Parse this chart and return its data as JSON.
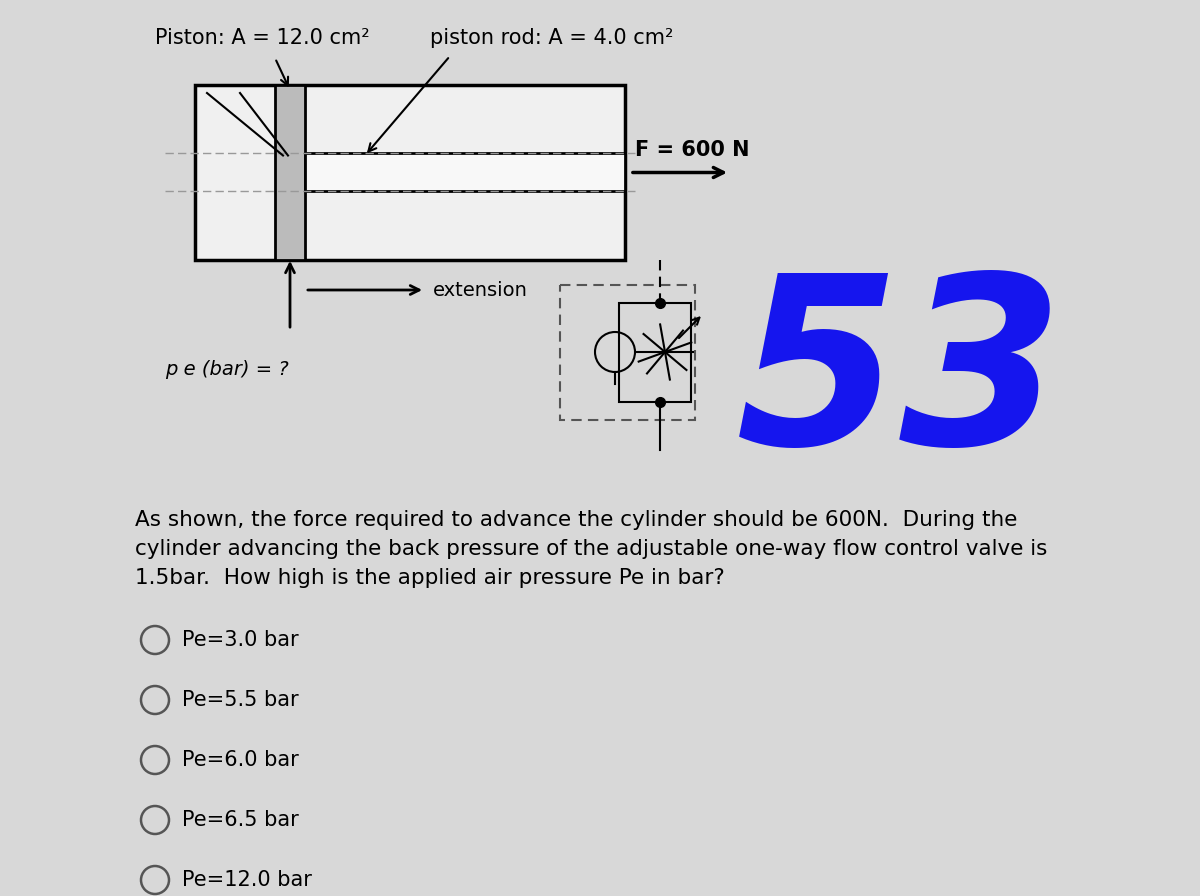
{
  "background_color": "#d8d8d8",
  "title_piston": "Piston: A = 12.0 cm²",
  "title_rod": "piston rod: A = 4.0 cm²",
  "label_force": "F = 600 N",
  "label_extension": "extension",
  "label_pe": "p e (bar) = ?",
  "question_text": "As shown, the force required to advance the cylinder should be 600N.  During the\ncylinder advancing the back pressure of the adjustable one-way flow control valve is\n1.5bar.  How high is the applied air pressure Pe in bar?",
  "options": [
    "Pe=3.0 bar",
    "Pe=5.5 bar",
    "Pe=6.0 bar",
    "Pe=6.5 bar",
    "Pe=12.0 bar"
  ],
  "number_label": "53",
  "number_color": "#1515ee",
  "fig_width": 12.0,
  "fig_height": 8.96
}
